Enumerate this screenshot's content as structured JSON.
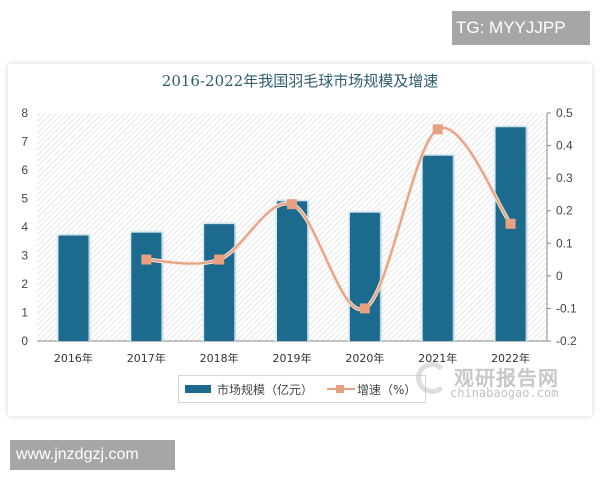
{
  "watermarks": {
    "top_badge": "TG: MYYJJPP",
    "bottom_badge": "www.jnzdgzj.com",
    "brand_cn": "观研报告网",
    "brand_en": "chinabaogao.com"
  },
  "legend": {
    "bar_label": "市场规模（亿元）",
    "line_label": "增速（%）"
  },
  "colors": {
    "bar": "#1d6a8e",
    "line": "#e8a080",
    "title": "#2e5d6e"
  },
  "chart_data": {
    "type": "bar",
    "title": "2016-2022年我国羽毛球市场规模及增速",
    "categories": [
      "2016年",
      "2017年",
      "2018年",
      "2019年",
      "2020年",
      "2021年",
      "2022年"
    ],
    "series": [
      {
        "name": "市场规模（亿元）",
        "type": "bar",
        "axis": "left",
        "values": [
          3.7,
          3.8,
          4.1,
          4.9,
          4.5,
          6.5,
          7.5
        ]
      },
      {
        "name": "增速（%）",
        "type": "line",
        "axis": "right",
        "values": [
          null,
          0.05,
          0.05,
          0.22,
          -0.1,
          0.45,
          0.16
        ]
      }
    ],
    "xlabel": "",
    "ylabel": "",
    "ylim": [
      0,
      8
    ],
    "yticks": [
      "0",
      "1",
      "2",
      "3",
      "4",
      "5",
      "6",
      "7",
      "8"
    ],
    "y2lim": [
      -0.2,
      0.5
    ],
    "y2ticks": [
      "0.5",
      "0.4",
      "0.3",
      "0.2",
      "0.1",
      "0",
      "-0.1",
      "-0.2"
    ],
    "grid": false,
    "legend_position": "bottom"
  }
}
